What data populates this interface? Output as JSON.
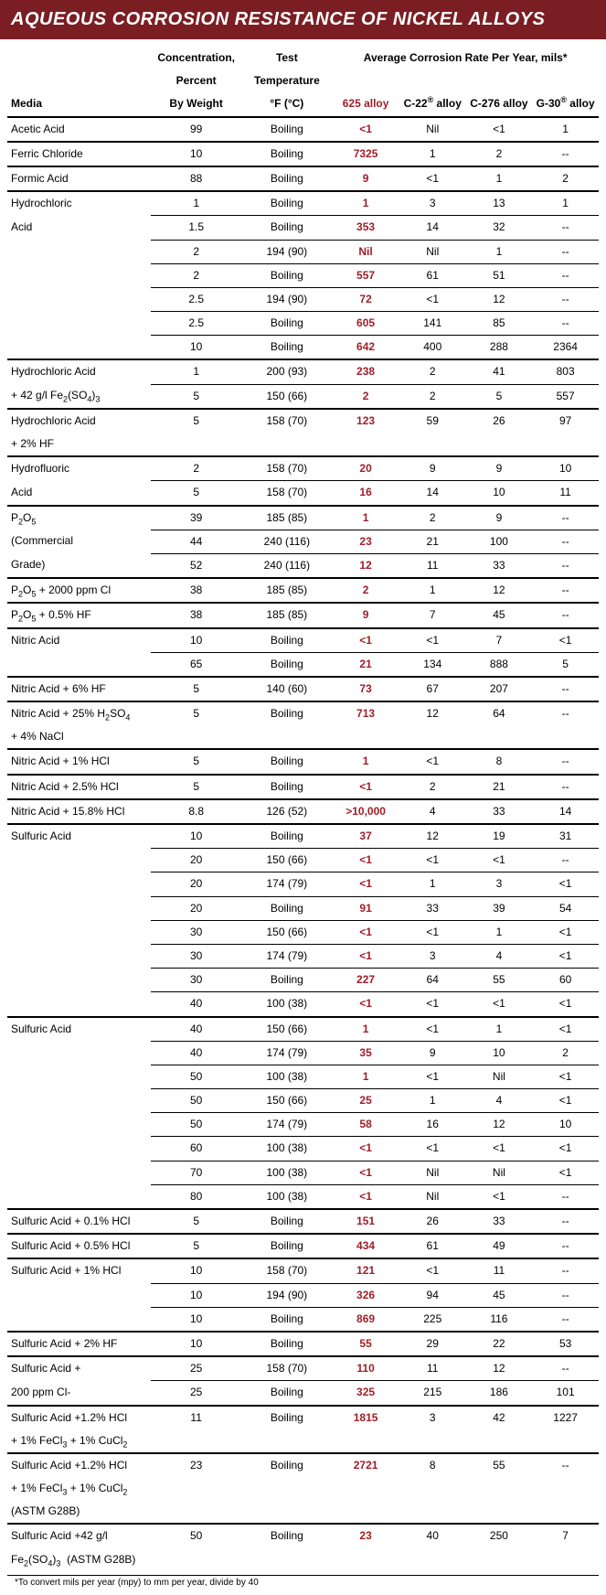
{
  "title": "AQUEOUS CORROSION RESISTANCE OF NICKEL ALLOYS",
  "colors": {
    "header_bg": "#7a1e23",
    "header_text": "#ffffff",
    "accent_625": "#a01e28",
    "text": "#000000",
    "background": "#ffffff"
  },
  "typography": {
    "header_fontsize": 20,
    "body_fontsize": 12,
    "footnote_fontsize": 10
  },
  "headers": {
    "media": "Media",
    "conc_top": "Concentration,",
    "conc_mid": "Percent",
    "conc_bot": "By Weight",
    "temp_top": "Test",
    "temp_mid": "Temperature",
    "temp_bot": "°F (°C)",
    "rate_span": "Average Corrosion Rate Per Year, mils*",
    "a625": "625 alloy",
    "c22": "C-22® alloy",
    "c276": "C-276 alloy",
    "g30": "G-30® alloy"
  },
  "footnote": "*To convert mils per year (mpy) to mm per year, divide by 40",
  "rows": [
    {
      "media": "Acetic Acid",
      "conc": "99",
      "temp": "Boiling",
      "v625": "<1",
      "c22": "Nil",
      "c276": "<1",
      "g30": "1",
      "border": "b2"
    },
    {
      "media": "Ferric Chloride",
      "conc": "10",
      "temp": "Boiling",
      "v625": "7325",
      "c22": "1",
      "c276": "2",
      "g30": "--",
      "border": "b2"
    },
    {
      "media": "Formic Acid",
      "conc": "88",
      "temp": "Boiling",
      "v625": "9",
      "c22": "<1",
      "c276": "1",
      "g30": "2",
      "border": "b2"
    },
    {
      "media": "Hydrochloric",
      "conc": "1",
      "temp": "Boiling",
      "v625": "1",
      "c22": "3",
      "c276": "13",
      "g30": "1",
      "border": "b1",
      "media_noborder": true
    },
    {
      "media": "Acid",
      "conc": "1.5",
      "temp": "Boiling",
      "v625": "353",
      "c22": "14",
      "c276": "32",
      "g30": "--",
      "border": "b1",
      "media_noborder": true
    },
    {
      "media": "",
      "conc": "2",
      "temp": "194 (90)",
      "v625": "Nil",
      "c22": "Nil",
      "c276": "1",
      "g30": "--",
      "border": "b1",
      "media_noborder": true
    },
    {
      "media": "",
      "conc": "2",
      "temp": "Boiling",
      "v625": "557",
      "c22": "61",
      "c276": "51",
      "g30": "--",
      "border": "b1",
      "media_noborder": true
    },
    {
      "media": "",
      "conc": "2.5",
      "temp": "194 (90)",
      "v625": "72",
      "c22": "<1",
      "c276": "12",
      "g30": "--",
      "border": "b1",
      "media_noborder": true
    },
    {
      "media": "",
      "conc": "2.5",
      "temp": "Boiling",
      "v625": "605",
      "c22": "141",
      "c276": "85",
      "g30": "--",
      "border": "b1",
      "media_noborder": true
    },
    {
      "media": "",
      "conc": "10",
      "temp": "Boiling",
      "v625": "642",
      "c22": "400",
      "c276": "288",
      "g30": "2364",
      "border": "b2"
    },
    {
      "media": "Hydrochloric Acid",
      "conc": "1",
      "temp": "200 (93)",
      "v625": "238",
      "c22": "2",
      "c276": "41",
      "g30": "803",
      "border": "b1",
      "media_noborder": true
    },
    {
      "media_html": "+ 42 g/l Fe<sub>2</sub>(SO<sub>4</sub>)<sub>3</sub>",
      "conc": "5",
      "temp": "150 (66)",
      "v625": "2",
      "c22": "2",
      "c276": "5",
      "g30": "557",
      "border": "b2"
    },
    {
      "media": "Hydrochloric Acid",
      "conc": "5",
      "temp": "158 (70)",
      "v625": "123",
      "c22": "59",
      "c276": "26",
      "g30": "97",
      "border": "",
      "media_noborder": true
    },
    {
      "media": "+ 2% HF",
      "conc": "",
      "temp": "",
      "v625": "",
      "c22": "",
      "c276": "",
      "g30": "",
      "border": "b2",
      "blank625": true
    },
    {
      "media": "Hydrofluoric",
      "conc": "2",
      "temp": "158 (70)",
      "v625": "20",
      "c22": "9",
      "c276": "9",
      "g30": "10",
      "border": "b1",
      "media_noborder": true
    },
    {
      "media": "Acid",
      "conc": "5",
      "temp": "158 (70)",
      "v625": "16",
      "c22": "14",
      "c276": "10",
      "g30": "11",
      "border": "b2"
    },
    {
      "media_html": "P<sub>2</sub>O<sub>5</sub>",
      "conc": "39",
      "temp": "185 (85)",
      "v625": "1",
      "c22": "2",
      "c276": "9",
      "g30": "--",
      "border": "b1",
      "media_noborder": true
    },
    {
      "media": "(Commercial",
      "conc": "44",
      "temp": "240 (116)",
      "v625": "23",
      "c22": "21",
      "c276": "100",
      "g30": "--",
      "border": "b1",
      "media_noborder": true
    },
    {
      "media": "Grade)",
      "conc": "52",
      "temp": "240 (116)",
      "v625": "12",
      "c22": "11",
      "c276": "33",
      "g30": "--",
      "border": "b2"
    },
    {
      "media_html": "P<sub>2</sub>O<sub>5</sub> + 2000 ppm Cl",
      "conc": "38",
      "temp": "185 (85)",
      "v625": "2",
      "c22": "1",
      "c276": "12",
      "g30": "--",
      "border": "b2"
    },
    {
      "media_html": "P<sub>2</sub>O<sub>5</sub> + 0.5% HF",
      "conc": "38",
      "temp": "185 (85)",
      "v625": "9",
      "c22": "7",
      "c276": "45",
      "g30": "--",
      "border": "b2"
    },
    {
      "media": "Nitric Acid",
      "conc": "10",
      "temp": "Boiling",
      "v625": "<1",
      "c22": "<1",
      "c276": "7",
      "g30": "<1",
      "border": "b1",
      "media_noborder": true
    },
    {
      "media": "",
      "conc": "65",
      "temp": "Boiling",
      "v625": "21",
      "c22": "134",
      "c276": "888",
      "g30": "5",
      "border": "b2"
    },
    {
      "media": "Nitric Acid + 6% HF",
      "conc": "5",
      "temp": "140 (60)",
      "v625": "73",
      "c22": "67",
      "c276": "207",
      "g30": "--",
      "border": "b2"
    },
    {
      "media_html": "Nitric Acid + 25% H<sub>2</sub>SO<sub>4</sub>",
      "conc": "5",
      "temp": "Boiling",
      "v625": "713",
      "c22": "12",
      "c276": "64",
      "g30": "--",
      "border": "",
      "media_noborder": true
    },
    {
      "media": "+ 4% NaCl",
      "conc": "",
      "temp": "",
      "v625": "",
      "c22": "",
      "c276": "",
      "g30": "",
      "border": "b2",
      "blank625": true
    },
    {
      "media": "Nitric Acid + 1% HCl",
      "conc": "5",
      "temp": "Boiling",
      "v625": "1",
      "c22": "<1",
      "c276": "8",
      "g30": "--",
      "border": "b2"
    },
    {
      "media": "Nitric Acid + 2.5% HCl",
      "conc": "5",
      "temp": "Boiling",
      "v625": "<1",
      "c22": "2",
      "c276": "21",
      "g30": "--",
      "border": "b2"
    },
    {
      "media": "Nitric Acid + 15.8% HCl",
      "conc": "8.8",
      "temp": "126 (52)",
      "v625": ">10,000",
      "c22": "4",
      "c276": "33",
      "g30": "14",
      "border": "b2"
    },
    {
      "media": "Sulfuric Acid",
      "conc": "10",
      "temp": "Boiling",
      "v625": "37",
      "c22": "12",
      "c276": "19",
      "g30": "31",
      "border": "b1",
      "media_noborder": true
    },
    {
      "media": "",
      "conc": "20",
      "temp": "150 (66)",
      "v625": "<1",
      "c22": "<1",
      "c276": "<1",
      "g30": "--",
      "border": "b1",
      "media_noborder": true
    },
    {
      "media": "",
      "conc": "20",
      "temp": "174 (79)",
      "v625": "<1",
      "c22": "1",
      "c276": "3",
      "g30": "<1",
      "border": "b1",
      "media_noborder": true
    },
    {
      "media": "",
      "conc": "20",
      "temp": "Boiling",
      "v625": "91",
      "c22": "33",
      "c276": "39",
      "g30": "54",
      "border": "b1",
      "media_noborder": true
    },
    {
      "media": "",
      "conc": "30",
      "temp": "150 (66)",
      "v625": "<1",
      "c22": "<1",
      "c276": "1",
      "g30": "<1",
      "border": "b1",
      "media_noborder": true
    },
    {
      "media": "",
      "conc": "30",
      "temp": "174 (79)",
      "v625": "<1",
      "c22": "3",
      "c276": "4",
      "g30": "<1",
      "border": "b1",
      "media_noborder": true
    },
    {
      "media": "",
      "conc": "30",
      "temp": "Boiling",
      "v625": "227",
      "c22": "64",
      "c276": "55",
      "g30": "60",
      "border": "b1",
      "media_noborder": true
    },
    {
      "media": "",
      "conc": "40",
      "temp": "100 (38)",
      "v625": "<1",
      "c22": "<1",
      "c276": "<1",
      "g30": "<1",
      "border": "b2"
    },
    {
      "media": "Sulfuric Acid",
      "conc": "40",
      "temp": "150 (66)",
      "v625": "1",
      "c22": "<1",
      "c276": "1",
      "g30": "<1",
      "border": "b1",
      "media_noborder": true
    },
    {
      "media": "",
      "conc": "40",
      "temp": "174 (79)",
      "v625": "35",
      "c22": "9",
      "c276": "10",
      "g30": "2",
      "border": "b1",
      "media_noborder": true
    },
    {
      "media": "",
      "conc": "50",
      "temp": "100 (38)",
      "v625": "1",
      "c22": "<1",
      "c276": "Nil",
      "g30": "<1",
      "border": "b1",
      "media_noborder": true
    },
    {
      "media": "",
      "conc": "50",
      "temp": "150 (66)",
      "v625": "25",
      "c22": "1",
      "c276": "4",
      "g30": "<1",
      "border": "b1",
      "media_noborder": true
    },
    {
      "media": "",
      "conc": "50",
      "temp": "174 (79)",
      "v625": "58",
      "c22": "16",
      "c276": "12",
      "g30": "10",
      "border": "b1",
      "media_noborder": true
    },
    {
      "media": "",
      "conc": "60",
      "temp": "100 (38)",
      "v625": "<1",
      "c22": "<1",
      "c276": "<1",
      "g30": "<1",
      "border": "b1",
      "media_noborder": true
    },
    {
      "media": "",
      "conc": "70",
      "temp": "100 (38)",
      "v625": "<1",
      "c22": "Nil",
      "c276": "Nil",
      "g30": "<1",
      "border": "b1",
      "media_noborder": true
    },
    {
      "media": "",
      "conc": "80",
      "temp": "100 (38)",
      "v625": "<1",
      "c22": "Nil",
      "c276": "<1",
      "g30": "--",
      "border": "b2"
    },
    {
      "media": "Sulfuric Acid + 0.1% HCl",
      "conc": "5",
      "temp": "Boiling",
      "v625": "151",
      "c22": "26",
      "c276": "33",
      "g30": "--",
      "border": "b2"
    },
    {
      "media": "Sulfuric Acid + 0.5% HCl",
      "conc": "5",
      "temp": "Boiling",
      "v625": "434",
      "c22": "61",
      "c276": "49",
      "g30": "--",
      "border": "b2"
    },
    {
      "media": "Sulfuric Acid + 1% HCl",
      "conc": "10",
      "temp": "158 (70)",
      "v625": "121",
      "c22": "<1",
      "c276": "11",
      "g30": "--",
      "border": "b1",
      "media_noborder": true
    },
    {
      "media": "",
      "conc": "10",
      "temp": "194 (90)",
      "v625": "326",
      "c22": "94",
      "c276": "45",
      "g30": "--",
      "border": "b1",
      "media_noborder": true
    },
    {
      "media": "",
      "conc": "10",
      "temp": "Boiling",
      "v625": "869",
      "c22": "225",
      "c276": "116",
      "g30": "--",
      "border": "b2"
    },
    {
      "media": "Sulfuric Acid + 2% HF",
      "conc": "10",
      "temp": "Boiling",
      "v625": "55",
      "c22": "29",
      "c276": "22",
      "g30": "53",
      "border": "b2"
    },
    {
      "media": "Sulfuric Acid +",
      "conc": "25",
      "temp": "158 (70)",
      "v625": "110",
      "c22": "11",
      "c276": "12",
      "g30": "--",
      "border": "b1",
      "media_noborder": true
    },
    {
      "media": "200 ppm Cl-",
      "conc": "25",
      "temp": "Boiling",
      "v625": "325",
      "c22": "215",
      "c276": "186",
      "g30": "101",
      "border": "b2"
    },
    {
      "media": "Sulfuric Acid +1.2% HCl",
      "conc": "11",
      "temp": "Boiling",
      "v625": "1815",
      "c22": "3",
      "c276": "42",
      "g30": "1227",
      "border": "",
      "media_noborder": true
    },
    {
      "media_html": "+ 1% FeCl<sub>3</sub> + 1% CuCl<sub>2</sub>",
      "conc": "",
      "temp": "",
      "v625": "",
      "c22": "",
      "c276": "",
      "g30": "",
      "border": "b2",
      "blank625": true
    },
    {
      "media": "Sulfuric Acid +1.2% HCl",
      "conc": "23",
      "temp": "Boiling",
      "v625": "2721",
      "c22": "8",
      "c276": "55",
      "g30": "--",
      "border": "",
      "media_noborder": true
    },
    {
      "media_html": "+ 1% FeCl<sub>3</sub> + 1% CuCl<sub>2</sub>",
      "conc": "",
      "temp": "",
      "v625": "",
      "c22": "",
      "c276": "",
      "g30": "",
      "border": "",
      "blank625": true,
      "media_noborder": true
    },
    {
      "media": "(ASTM G28B)",
      "conc": "",
      "temp": "",
      "v625": "",
      "c22": "",
      "c276": "",
      "g30": "",
      "border": "b2",
      "blank625": true
    },
    {
      "media": "Sulfuric Acid +42 g/l",
      "conc": "50",
      "temp": "Boiling",
      "v625": "23",
      "c22": "40",
      "c276": "250",
      "g30": "7",
      "border": "",
      "media_noborder": true
    },
    {
      "media_html": "Fe<sub>2</sub>(SO<sub>4</sub>)<sub>3</sub>&nbsp;&nbsp;(ASTM G28B)",
      "conc": "",
      "temp": "",
      "v625": "",
      "c22": "",
      "c276": "",
      "g30": "",
      "border": "",
      "blank625": true
    }
  ]
}
